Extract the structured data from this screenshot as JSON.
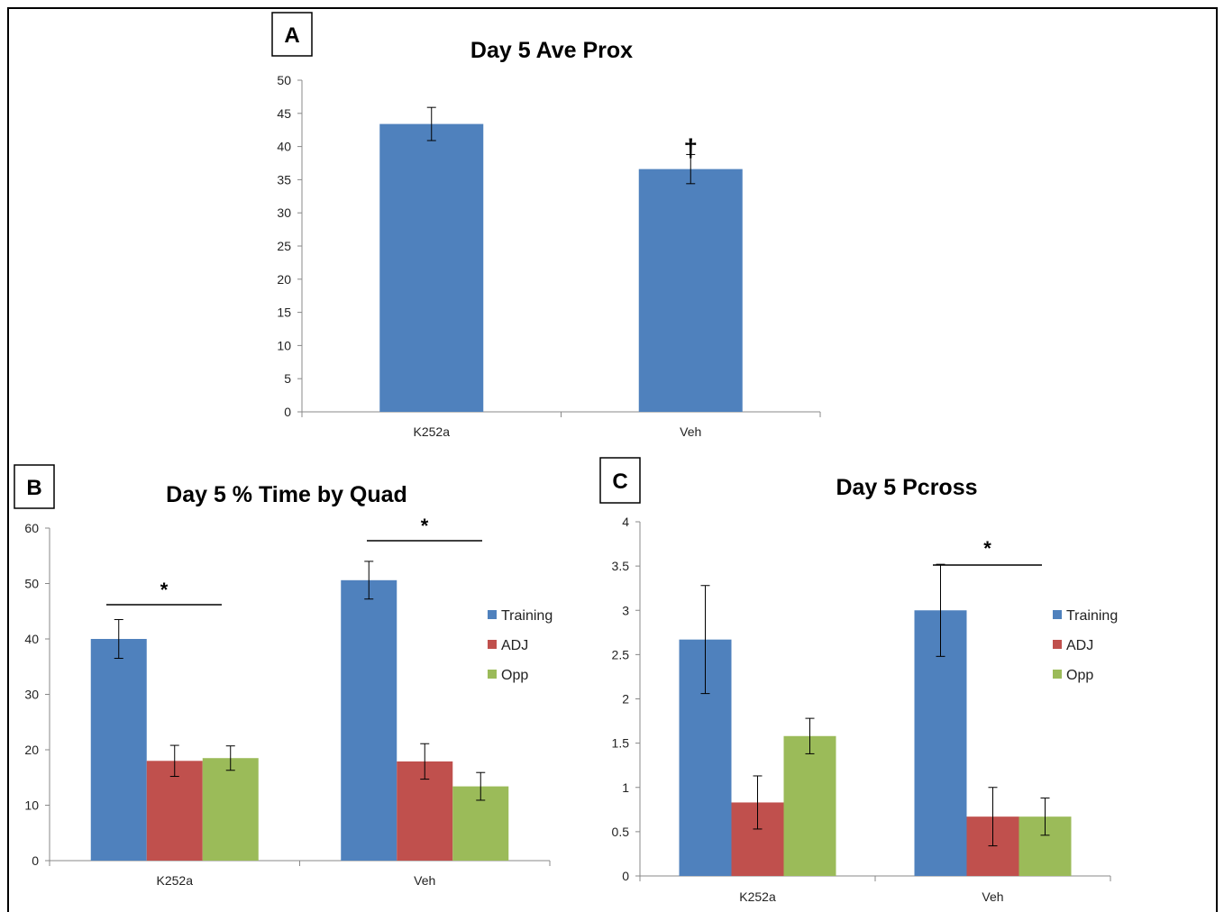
{
  "chart_data": [
    {
      "panel": "A",
      "type": "bar",
      "title": "Day 5 Ave Prox",
      "categories": [
        "K252a",
        "Veh"
      ],
      "series": [
        {
          "values": [
            43.4,
            36.6
          ],
          "errors": [
            2.5,
            2.2
          ],
          "color": "#4f81bd"
        }
      ],
      "ylim": [
        0,
        50
      ],
      "yticks": [
        0,
        5,
        10,
        15,
        20,
        25,
        30,
        35,
        40,
        45,
        50
      ],
      "annotations": [
        {
          "text": "†",
          "category": 1
        }
      ],
      "grid": false
    },
    {
      "panel": "B",
      "type": "bar",
      "title": "Day 5 % Time by Quad",
      "categories": [
        "K252a",
        "Veh"
      ],
      "series": [
        {
          "name": "Training",
          "values": [
            40.0,
            50.6
          ],
          "errors": [
            3.5,
            3.4
          ],
          "color": "#4f81bd"
        },
        {
          "name": "ADJ",
          "values": [
            18.0,
            17.9
          ],
          "errors": [
            2.8,
            3.2
          ],
          "color": "#c0504d"
        },
        {
          "name": "Opp",
          "values": [
            18.5,
            13.4
          ],
          "errors": [
            2.2,
            2.5
          ],
          "color": "#9bbb59"
        }
      ],
      "ylim": [
        0,
        60
      ],
      "yticks": [
        0,
        10,
        20,
        30,
        40,
        50,
        60
      ],
      "significance": [
        {
          "text": "*",
          "category": 0
        },
        {
          "text": "*",
          "category": 1
        }
      ],
      "legend": "right",
      "grid": false
    },
    {
      "panel": "C",
      "type": "bar",
      "title": "Day 5 Pcross",
      "categories": [
        "K252a",
        "Veh"
      ],
      "series": [
        {
          "name": "Training",
          "values": [
            2.67,
            3.0
          ],
          "errors": [
            0.61,
            0.52
          ],
          "color": "#4f81bd"
        },
        {
          "name": "ADJ",
          "values": [
            0.83,
            0.67
          ],
          "errors": [
            0.3,
            0.33
          ],
          "color": "#c0504d"
        },
        {
          "name": "Opp",
          "values": [
            1.58,
            0.67
          ],
          "errors": [
            0.2,
            0.21
          ],
          "color": "#9bbb59"
        }
      ],
      "ylim": [
        0,
        4
      ],
      "yticks": [
        "0",
        "0.5",
        "1",
        "1.5",
        "2",
        "2.5",
        "3",
        "3.5",
        "4"
      ],
      "significance": [
        {
          "text": "*",
          "category": 1
        }
      ],
      "legend": "right",
      "grid": false
    }
  ]
}
